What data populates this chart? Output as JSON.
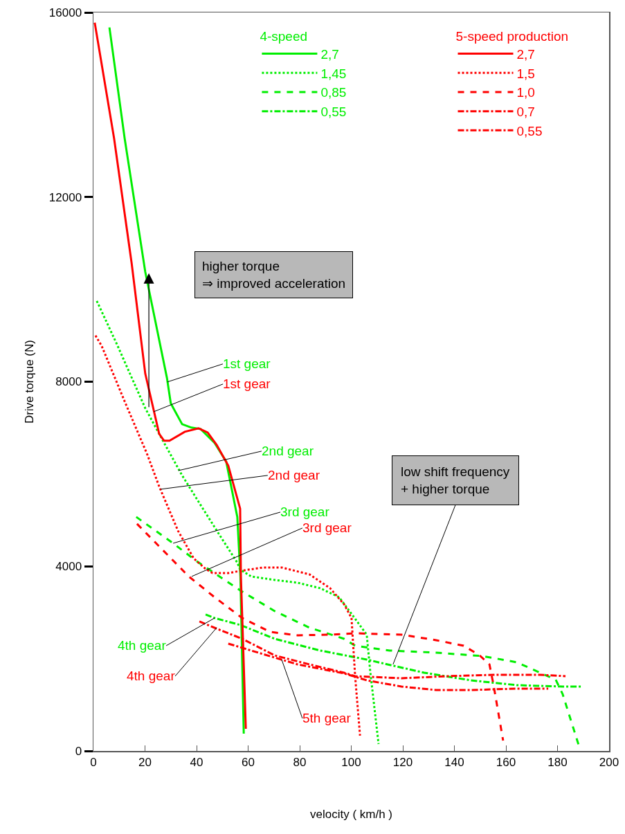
{
  "chart_data": {
    "type": "line",
    "xlabel": "velocity ( km/h )",
    "ylabel": "Drive torque (N)",
    "xlim": [
      0,
      200
    ],
    "xticks": [
      0,
      20,
      40,
      60,
      80,
      100,
      120,
      140,
      160,
      180,
      200
    ],
    "ylim": [
      0,
      16000
    ],
    "yticks": [
      0,
      4000,
      8000,
      12000,
      16000
    ],
    "grid": false,
    "legend": "top right",
    "marker": "none",
    "series": [
      {
        "name": "2,7",
        "color": "#00ee00",
        "line_style": "solid",
        "x": [
          6.2,
          12.1,
          20.1,
          28.5,
          30,
          34.4,
          38,
          41.6,
          47,
          51.5,
          55.8,
          57,
          58.3
        ],
        "values": [
          15675,
          13275,
          10380,
          8085,
          7530,
          7080,
          7005,
          6975,
          6675,
          6270,
          5070,
          3780,
          375
        ]
      },
      {
        "name": "1,45",
        "color": "#00ee00",
        "line_style": "dotted",
        "x": [
          1.3,
          9.4,
          20.1,
          27.4,
          34.4,
          41.6,
          48.9,
          55.8,
          56.9,
          61.2,
          70.3,
          79.2,
          88,
          95.3,
          100.7,
          106,
          107.4,
          110.6
        ],
        "values": [
          9750,
          8775,
          7425,
          6675,
          5970,
          5325,
          4680,
          4080,
          3930,
          3780,
          3705,
          3645,
          3525,
          3330,
          2925,
          2520,
          1700,
          150
        ]
      },
      {
        "name": "0,85",
        "color": "#00ee00",
        "line_style": "dashed",
        "x": [
          16.6,
          30.9,
          39.7,
          48.9,
          56.9,
          70.3,
          83.8,
          97.2,
          101.5,
          114.9,
          132.9,
          150.9,
          164.3,
          173.2,
          179.3,
          182,
          188.5
        ],
        "values": [
          5070,
          4500,
          4125,
          3780,
          3480,
          3030,
          2670,
          2430,
          2280,
          2175,
          2130,
          2055,
          1920,
          1695,
          1545,
          1230,
          75
        ]
      },
      {
        "name": "0,55",
        "color": "#00ee00",
        "line_style": "dashdot",
        "x": [
          43.5,
          47,
          56.9,
          70.3,
          88,
          106,
          110.6,
          128.3,
          146.3,
          164.3,
          182,
          189.3
        ],
        "values": [
          2955,
          2880,
          2730,
          2430,
          2175,
          1980,
          1920,
          1695,
          1530,
          1425,
          1395,
          1395
        ]
      },
      {
        "name": "2,7",
        "color": "#ff0000",
        "line_style": "solid",
        "x": [
          0.5,
          8,
          14.8,
          20.1,
          25.5,
          27.4,
          29.5,
          35.4,
          40.8,
          44.3,
          47.8,
          52.3,
          56.9,
          57.2,
          59.1
        ],
        "values": [
          15780,
          13275,
          10575,
          8175,
          6870,
          6720,
          6720,
          6915,
          6990,
          6900,
          6630,
          6180,
          5250,
          3780,
          480
        ]
      },
      {
        "name": "1,5",
        "color": "#ff0000",
        "line_style": "dotted",
        "x": [
          0.8,
          3.2,
          12.1,
          20.9,
          25.5,
          32.8,
          38.9,
          43.5,
          46.2,
          52.3,
          56.9,
          65.8,
          73,
          83.8,
          91.8,
          97.2,
          100.1,
          101.5,
          103.4
        ],
        "values": [
          9000,
          8775,
          7575,
          6420,
          5730,
          4770,
          4170,
          3945,
          3855,
          3855,
          3900,
          3975,
          3975,
          3825,
          3525,
          3180,
          2880,
          1620,
          330
        ]
      },
      {
        "name": "1,0",
        "color": "#ff0000",
        "line_style": "dashed",
        "x": [
          16.9,
          37,
          47,
          57.7,
          68.5,
          79.2,
          92.6,
          101.5,
          119.5,
          132.9,
          143.6,
          149.8,
          153.6,
          155.2,
          158.9
        ],
        "values": [
          4920,
          3780,
          3330,
          2880,
          2580,
          2505,
          2520,
          2550,
          2520,
          2400,
          2280,
          2070,
          1875,
          1425,
          225
        ]
      },
      {
        "name": "0,7",
        "color": "#ff0000",
        "line_style": "dashdot",
        "x": [
          41.1,
          48.9,
          57.7,
          70.3,
          83.8,
          97.2,
          101.5,
          119.5,
          137.4,
          155.2,
          173.2,
          183.1
        ],
        "values": [
          2805,
          2625,
          2430,
          2070,
          1875,
          1695,
          1620,
          1575,
          1620,
          1650,
          1650,
          1620
        ]
      },
      {
        "name": "0,55",
        "color": "#ff0000",
        "line_style": "dashdot",
        "x": [
          52.3,
          61.2,
          79.2,
          97.2,
          106,
          119.5,
          132.9,
          146.3,
          164.3,
          176.4
        ],
        "values": [
          2325,
          2175,
          1875,
          1680,
          1530,
          1395,
          1320,
          1320,
          1350,
          1350
        ]
      }
    ],
    "annotations": [
      "4-speed",
      "5-speed production",
      "higher torque\n⇒ improved acceleration",
      {
        "text": "low shift frequency\n+ higher torque",
        "x": 116.2,
        "y": 1875
      },
      {
        "text": "1st gear",
        "x": 28.7,
        "y": 7995
      },
      {
        "text": "1st gear",
        "x": 23.4,
        "y": 7350
      },
      {
        "text": "2nd gear",
        "x": 33,
        "y": 6075
      },
      {
        "text": "2nd gear",
        "x": 26,
        "y": 5670
      },
      {
        "text": "3rd gear",
        "x": 30.9,
        "y": 4500
      },
      {
        "text": "3rd gear",
        "x": 38.1,
        "y": 3780
      },
      {
        "text": "4th gear",
        "x": 47,
        "y": 2880
      },
      {
        "text": "4th gear",
        "x": 47.8,
        "y": 2670
      },
      {
        "text": "5th gear",
        "x": 73,
        "y": 1980
      }
    ]
  }
}
